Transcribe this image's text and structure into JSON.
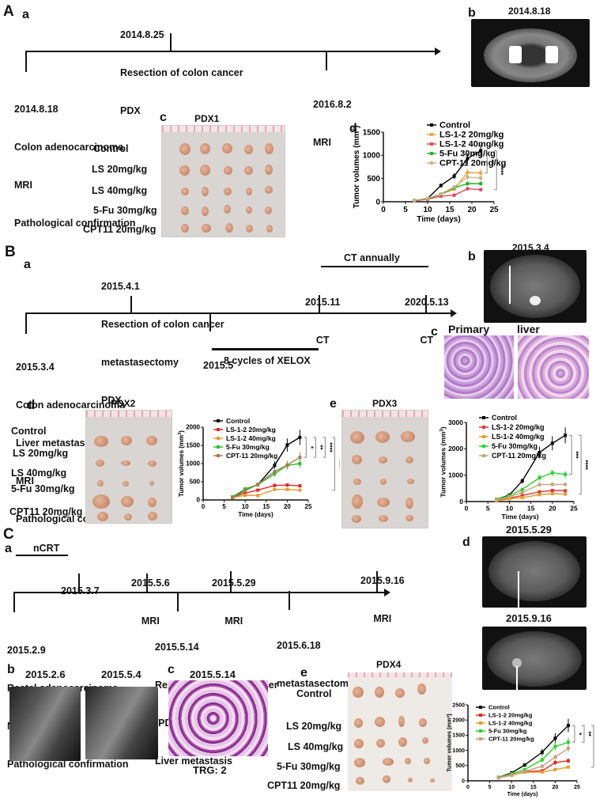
{
  "panelA": {
    "letter": "A",
    "a": {
      "letter": "a",
      "events_above": [
        {
          "date": "2014.8.25",
          "lines": [
            "Resection of colon cancer",
            "PDX"
          ]
        }
      ],
      "events_below": [
        {
          "date": "2014.8.18",
          "lines": [
            "Colon adenocarcinoma",
            "MRI",
            "Pathological confirmation"
          ]
        },
        {
          "date": "2016.8.2",
          "lines": [
            "MRI"
          ]
        }
      ]
    },
    "b": {
      "letter": "b",
      "date": "2014.8.18"
    },
    "c": {
      "letter": "c",
      "title": "PDX1",
      "rows": [
        "Control",
        "LS 20mg/kg",
        "LS 40mg/kg",
        "5-Fu 30mg/kg",
        "CPT11 20mg/kg"
      ]
    },
    "d": {
      "letter": "d"
    }
  },
  "panelB": {
    "letter": "B",
    "a": {
      "letter": "a",
      "events_above": [
        {
          "date": "2015.4.1",
          "lines": [
            "Resection of colon cancer",
            "metastasectomy",
            "PDX"
          ]
        },
        {
          "date": "2015.11",
          "lines": [
            "CT"
          ]
        },
        {
          "date": "2020.5.13",
          "lines": [
            "CT"
          ]
        }
      ],
      "events_below": [
        {
          "date": "2015.3.4",
          "lines": [
            "Colon adenocarcinoma",
            "Liver metastasis",
            "MRI",
            "Pathological confirmation"
          ]
        },
        {
          "date": "2015.5",
          "lines": []
        }
      ],
      "range_above": "CT annually",
      "range_below": "8 cycles of XELOX"
    },
    "b": {
      "letter": "b",
      "date": "2015.3.4"
    },
    "c": {
      "letter": "c",
      "left_title": "Primary",
      "right_title": "liver metastasis"
    },
    "d": {
      "letter": "d",
      "title": "PDX2",
      "rows": [
        "Control",
        "LS 20mg/kg",
        "LS 40mg/kg",
        "5-Fu 30mg/kg",
        "CPT11 20mg/kg"
      ]
    },
    "e": {
      "letter": "e",
      "title": "PDX3"
    }
  },
  "panelC": {
    "letter": "C",
    "a": {
      "letter": "a",
      "range_above": "nCRT",
      "events_above": [
        {
          "date": "2015.3.7",
          "lines": []
        },
        {
          "date": "2015.5.6",
          "lines": [
            "MRI"
          ]
        },
        {
          "date": "2015.5.29",
          "lines": [
            "MRI"
          ]
        },
        {
          "date": "2015.9.16",
          "lines": [
            "MRI"
          ]
        }
      ],
      "events_below": [
        {
          "date": "2015.2.9",
          "lines": [
            "Rectal adenocarcinoma",
            "MRI",
            "Pathological confirmation"
          ]
        },
        {
          "date": "2015.5.14",
          "lines": [
            "Resection of rectal cancer",
            "(PDX)",
            "Liver metastasis"
          ]
        },
        {
          "date": "2015.6.18",
          "lines": [
            "metastasectomy"
          ]
        }
      ]
    },
    "b": {
      "letter": "b",
      "dates": [
        "2015.2.6",
        "2015.5.4"
      ]
    },
    "c": {
      "letter": "c",
      "date": "2015.5.14",
      "caption": "TRG: 2"
    },
    "d": {
      "letter": "d",
      "dates": [
        "2015.5.29",
        "2015.9.16"
      ]
    },
    "e": {
      "letter": "e",
      "title": "PDX4",
      "rows": [
        "Control",
        "LS 20mg/kg",
        "LS 40mg/kg",
        "5-Fu 30mg/kg",
        "CPT11 20mg/kg"
      ]
    }
  },
  "colors": {
    "control": "#000000",
    "ls20": "#e8a33a",
    "ls40": "#e0485a",
    "fu": "#22b422",
    "cpt": "#c9b48a",
    "red": "#e02828",
    "orange": "#e89a2a",
    "green": "#2bd12b",
    "tan": "#c4a878",
    "brown": "#a08050"
  },
  "chart_data": [
    {
      "id": "PDX1",
      "type": "line",
      "title": "",
      "xlabel": "Time (days)",
      "ylabel": "Tumor volumes (mm3)",
      "xlim": [
        0,
        25
      ],
      "ylim": [
        0,
        1500
      ],
      "xticks": [
        0,
        5,
        10,
        15,
        20,
        25
      ],
      "yticks": [
        0,
        500,
        1000,
        1500
      ],
      "x": [
        7,
        10,
        13,
        16,
        19,
        22
      ],
      "series": [
        {
          "name": "Control",
          "values": [
            30,
            70,
            350,
            550,
            930,
            1100
          ]
        },
        {
          "name": "LS-1-2 20mg/kg",
          "values": [
            25,
            65,
            160,
            270,
            630,
            620
          ]
        },
        {
          "name": "LS-1-2 40mg/kg",
          "values": [
            20,
            55,
            120,
            140,
            280,
            260
          ]
        },
        {
          "name": "5-Fu 30mg/kg",
          "values": [
            30,
            70,
            160,
            300,
            390,
            390
          ]
        },
        {
          "name": "CPT-11 20mg/kg",
          "values": [
            30,
            75,
            170,
            320,
            530,
            510
          ]
        }
      ],
      "significance": [
        "**",
        "****"
      ],
      "legend_position": "top-left"
    },
    {
      "id": "PDX2",
      "type": "line",
      "xlabel": "Time (days)",
      "ylabel": "Tumor volumes (mm3)",
      "xlim": [
        0,
        25
      ],
      "ylim": [
        0,
        2000
      ],
      "xticks": [
        0,
        5,
        10,
        15,
        20,
        25
      ],
      "yticks": [
        0,
        500,
        1000,
        1500,
        2000
      ],
      "x": [
        7,
        10,
        13,
        17,
        20,
        23
      ],
      "series": [
        {
          "name": "Control",
          "values": [
            60,
            300,
            420,
            950,
            1510,
            1720
          ]
        },
        {
          "name": "LS-1-2 20mg/kg",
          "values": [
            70,
            190,
            270,
            400,
            410,
            390
          ]
        },
        {
          "name": "LS-1-2 40mg/kg",
          "values": [
            60,
            130,
            120,
            290,
            290,
            270
          ]
        },
        {
          "name": "5-Fu 30mg/kg",
          "values": [
            90,
            300,
            420,
            720,
            950,
            1000
          ]
        },
        {
          "name": "CPT-11 20mg/kg",
          "values": [
            60,
            250,
            430,
            780,
            960,
            1170
          ]
        }
      ],
      "significance": [
        "*",
        "**",
        "****",
        "****"
      ],
      "legend_position": "top-left"
    },
    {
      "id": "PDX3",
      "type": "line",
      "xlabel": "Time (days)",
      "ylabel": "Tumor volumes (mm3)",
      "xlim": [
        0,
        25
      ],
      "ylim": [
        0,
        3000
      ],
      "xticks": [
        0,
        5,
        10,
        15,
        20,
        25
      ],
      "yticks": [
        0,
        1000,
        2000,
        3000
      ],
      "x": [
        7,
        10,
        13,
        17,
        20,
        23
      ],
      "series": [
        {
          "name": "Control",
          "values": [
            80,
            250,
            780,
            1860,
            2210,
            2510
          ]
        },
        {
          "name": "LS-1-2 20mg/kg",
          "values": [
            30,
            130,
            230,
            370,
            420,
            410
          ]
        },
        {
          "name": "LS-1-2 40mg/kg",
          "values": [
            20,
            100,
            150,
            260,
            300,
            280
          ]
        },
        {
          "name": "5-Fu 30mg/kg",
          "values": [
            80,
            220,
            460,
            900,
            1090,
            1030
          ]
        },
        {
          "name": "CPT-11 20mg/kg",
          "values": [
            60,
            170,
            350,
            640,
            650,
            650
          ]
        }
      ],
      "significance": [
        "***",
        "****"
      ],
      "legend_position": "top-left"
    },
    {
      "id": "PDX4",
      "type": "line",
      "xlabel": "Time (days)",
      "ylabel": "Tumor volumes (mm3)",
      "xlim": [
        0,
        25
      ],
      "ylim": [
        0,
        2500
      ],
      "xticks": [
        0,
        5,
        10,
        15,
        20,
        25
      ],
      "yticks": [
        0,
        500,
        1000,
        1500,
        2000,
        2500
      ],
      "x": [
        7,
        10,
        13,
        17,
        20,
        23
      ],
      "series": [
        {
          "name": "Control",
          "values": [
            110,
            260,
            520,
            940,
            1400,
            1820
          ]
        },
        {
          "name": "LS-1-2 20mg/kg",
          "values": [
            110,
            200,
            300,
            330,
            600,
            660
          ]
        },
        {
          "name": "LS-1-2 40mg/kg",
          "values": [
            100,
            180,
            280,
            290,
            370,
            450
          ]
        },
        {
          "name": "5-Fu 30mg/kg",
          "values": [
            110,
            230,
            370,
            690,
            1130,
            1270
          ]
        },
        {
          "name": "CPT-11 20mg/kg",
          "values": [
            100,
            200,
            310,
            480,
            780,
            1070
          ]
        }
      ],
      "significance": [
        "*",
        "**",
        "****"
      ],
      "legend_position": "top-left"
    }
  ]
}
